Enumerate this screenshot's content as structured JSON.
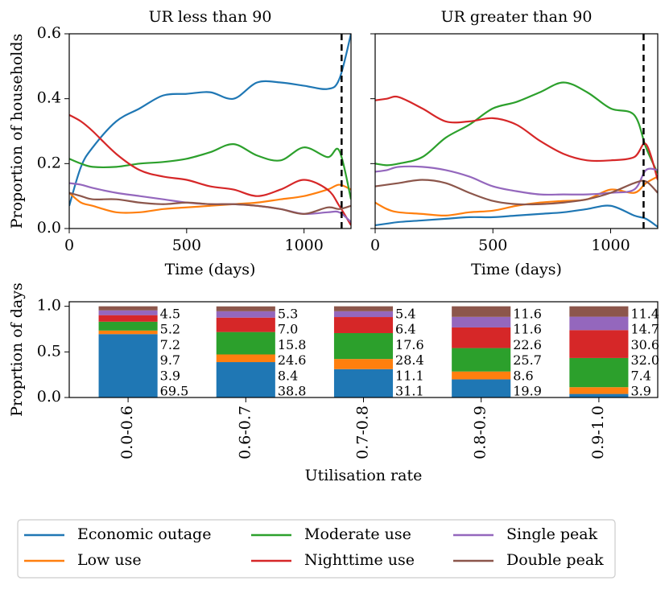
{
  "chart_data": [
    {
      "type": "line",
      "title": "UR less than 90",
      "x_label": "Time (days)",
      "y_label": "Proportion of households",
      "x": [
        0,
        50,
        100,
        200,
        300,
        400,
        500,
        600,
        700,
        800,
        900,
        1000,
        1100,
        1150,
        1200
      ],
      "series": [
        {
          "values": [
            0.07,
            0.19,
            0.25,
            0.33,
            0.37,
            0.41,
            0.415,
            0.42,
            0.4,
            0.45,
            0.45,
            0.44,
            0.43,
            0.46,
            0.6
          ]
        },
        {
          "values": [
            0.11,
            0.08,
            0.07,
            0.05,
            0.05,
            0.06,
            0.065,
            0.07,
            0.075,
            0.08,
            0.09,
            0.1,
            0.12,
            0.135,
            0.12
          ]
        },
        {
          "values": [
            0.215,
            0.2,
            0.19,
            0.19,
            0.2,
            0.205,
            0.215,
            0.235,
            0.26,
            0.225,
            0.21,
            0.25,
            0.22,
            0.24,
            0.09
          ]
        },
        {
          "values": [
            0.35,
            0.33,
            0.3,
            0.23,
            0.18,
            0.16,
            0.15,
            0.13,
            0.12,
            0.1,
            0.12,
            0.15,
            0.12,
            0.07,
            0.01
          ]
        },
        {
          "values": [
            0.14,
            0.135,
            0.125,
            0.11,
            0.1,
            0.09,
            0.08,
            0.075,
            0.075,
            0.07,
            0.06,
            0.045,
            0.05,
            0.05,
            0.02
          ]
        },
        {
          "values": [
            0.11,
            0.1,
            0.09,
            0.09,
            0.08,
            0.075,
            0.08,
            0.075,
            0.075,
            0.07,
            0.06,
            0.045,
            0.065,
            0.06,
            0.07
          ]
        }
      ],
      "vline": 1160,
      "xlim": [
        0,
        1200
      ],
      "xticks": [
        0,
        500,
        1000
      ],
      "ylim": [
        0,
        0.6
      ],
      "yticks": [
        {
          "value": 0,
          "label": "0.0"
        },
        {
          "value": 0.2,
          "label": "0.2"
        },
        {
          "value": 0.4,
          "label": "0.4"
        },
        {
          "value": 0.6,
          "label": "0.6"
        }
      ]
    },
    {
      "type": "line",
      "title": "UR greater than 90",
      "x_label": "Time (days)",
      "sharey": true,
      "x": [
        0,
        50,
        100,
        200,
        300,
        400,
        500,
        600,
        700,
        800,
        900,
        1000,
        1100,
        1150,
        1200
      ],
      "series": [
        {
          "values": [
            0.01,
            0.015,
            0.02,
            0.025,
            0.03,
            0.035,
            0.035,
            0.04,
            0.045,
            0.05,
            0.06,
            0.07,
            0.04,
            0.03,
            0.005
          ]
        },
        {
          "values": [
            0.08,
            0.06,
            0.05,
            0.045,
            0.04,
            0.05,
            0.055,
            0.07,
            0.08,
            0.085,
            0.09,
            0.12,
            0.11,
            0.14,
            0.16
          ]
        },
        {
          "values": [
            0.2,
            0.195,
            0.2,
            0.22,
            0.28,
            0.32,
            0.37,
            0.39,
            0.42,
            0.45,
            0.42,
            0.37,
            0.35,
            0.25,
            0.17
          ]
        },
        {
          "values": [
            0.395,
            0.4,
            0.405,
            0.37,
            0.33,
            0.33,
            0.34,
            0.32,
            0.27,
            0.23,
            0.21,
            0.21,
            0.22,
            0.26,
            0.15
          ]
        },
        {
          "values": [
            0.175,
            0.18,
            0.19,
            0.19,
            0.18,
            0.16,
            0.13,
            0.115,
            0.105,
            0.105,
            0.105,
            0.11,
            0.12,
            0.18,
            0.18
          ]
        },
        {
          "values": [
            0.13,
            0.135,
            0.14,
            0.15,
            0.14,
            0.11,
            0.085,
            0.075,
            0.075,
            0.08,
            0.09,
            0.11,
            0.14,
            0.145,
            0.11
          ]
        }
      ],
      "vline": 1140,
      "xlim": [
        0,
        1200
      ],
      "xticks": [
        0,
        500,
        1000
      ],
      "ylim": [
        0,
        0.6
      ],
      "yticks": [
        0,
        0.2,
        0.4,
        0.6
      ]
    },
    {
      "type": "stacked_bar",
      "x_label": "Utilisation rate",
      "y_label": "Proprtion of days",
      "categories": [
        "0.0-0.6",
        "0.6-0.7",
        "0.7-0.8",
        "0.8-0.9",
        "0.9-1.0"
      ],
      "series": [
        {
          "values": [
            0.695,
            0.388,
            0.311,
            0.199,
            0.039
          ],
          "value_labels": [
            "69.5",
            "38.8",
            "31.1",
            "19.9",
            "3.9"
          ]
        },
        {
          "values": [
            0.039,
            0.084,
            0.111,
            0.086,
            0.074
          ],
          "value_labels": [
            "3.9",
            "8.4",
            "11.1",
            "8.6",
            "7.4"
          ]
        },
        {
          "values": [
            0.097,
            0.246,
            0.284,
            0.257,
            0.32
          ],
          "value_labels": [
            "9.7",
            "24.6",
            "28.4",
            "25.7",
            "32.0"
          ]
        },
        {
          "values": [
            0.072,
            0.158,
            0.176,
            0.226,
            0.306
          ],
          "value_labels": [
            "7.2",
            "15.8",
            "17.6",
            "22.6",
            "30.6"
          ]
        },
        {
          "values": [
            0.052,
            0.07,
            0.064,
            0.116,
            0.147
          ],
          "value_labels": [
            "5.2",
            "7.0",
            "6.4",
            "11.6",
            "14.7"
          ]
        },
        {
          "values": [
            0.045,
            0.053,
            0.054,
            0.116,
            0.114
          ],
          "value_labels": [
            "4.5",
            "5.3",
            "5.4",
            "11.6",
            "11.4"
          ]
        }
      ],
      "ylim": [
        0,
        1.05
      ],
      "yticks": [
        {
          "value": 0,
          "label": "0.0"
        },
        {
          "value": 0.5,
          "label": "0.5"
        },
        {
          "value": 1,
          "label": "1.0"
        }
      ]
    }
  ],
  "legend": {
    "loc": "lower center",
    "ncol": 3,
    "entries": [
      {
        "name": "Economic outage",
        "color": "#1f77b4"
      },
      {
        "name": "Low use",
        "color": "#ff7f0e"
      },
      {
        "name": "Moderate use",
        "color": "#2ca02c"
      },
      {
        "name": "Nighttime use",
        "color": "#d62728"
      },
      {
        "name": "Single peak",
        "color": "#9467bd"
      },
      {
        "name": "Double peak",
        "color": "#8c564b"
      }
    ]
  }
}
